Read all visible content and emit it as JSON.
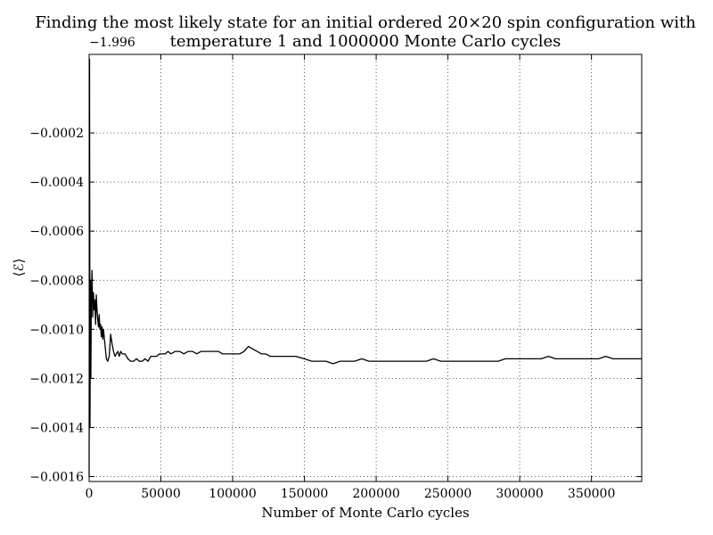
{
  "chart_data": {
    "type": "line",
    "title_line1": "Finding the most likely state for an initial ordered 20×20 spin configuration with",
    "title_line2": "temperature 1 and 1000000 Monte Carlo cycles",
    "xlabel": "Number of Monte Carlo cycles",
    "ylabel": "⟨ℰ⟩",
    "y_offset_label": "−1.996",
    "xlim": [
      0,
      385000
    ],
    "ylim": [
      -0.00162,
      0.00012
    ],
    "xticks": [
      0,
      50000,
      100000,
      150000,
      200000,
      250000,
      300000,
      350000
    ],
    "xtick_labels": [
      "0",
      "50000",
      "100000",
      "150000",
      "200000",
      "250000",
      "300000",
      "350000"
    ],
    "yticks": [
      -0.0002,
      -0.0004,
      -0.0006,
      -0.0008,
      -0.001,
      -0.0012,
      -0.0014,
      -0.0016
    ],
    "ytick_labels": [
      "−0.0002",
      "−0.0004",
      "−0.0006",
      "−0.0008",
      "−0.0010",
      "−0.0012",
      "−0.0014",
      "−0.0016"
    ],
    "grid": true,
    "series": [
      {
        "color": "#000000",
        "x": [
          0,
          300,
          600,
          900,
          1200,
          1500,
          2000,
          2500,
          3000,
          3500,
          4000,
          4500,
          5000,
          5500,
          6000,
          6500,
          7000,
          7500,
          8000,
          8500,
          9000,
          9500,
          10000,
          11000,
          12000,
          13000,
          14000,
          15000,
          16000,
          17000,
          18000,
          19000,
          20000,
          21000,
          22000,
          23000,
          24000,
          25000,
          27000,
          29000,
          31000,
          33000,
          35000,
          37000,
          39000,
          41000,
          43000,
          45000,
          47000,
          49000,
          51000,
          53000,
          55000,
          57000,
          60000,
          63000,
          66000,
          69000,
          72000,
          75000,
          78000,
          81000,
          84000,
          87000,
          90000,
          93000,
          96000,
          99000,
          102000,
          105000,
          108000,
          111000,
          114000,
          117000,
          120000,
          123000,
          126000,
          129000,
          132000,
          135000,
          138000,
          141000,
          144000,
          150000,
          155000,
          160000,
          165000,
          170000,
          175000,
          180000,
          185000,
          190000,
          195000,
          200000,
          205000,
          210000,
          215000,
          220000,
          225000,
          230000,
          235000,
          240000,
          245000,
          250000,
          255000,
          260000,
          265000,
          270000,
          275000,
          280000,
          285000,
          290000,
          295000,
          300000,
          305000,
          310000,
          315000,
          320000,
          325000,
          330000,
          335000,
          340000,
          345000,
          350000,
          355000,
          360000,
          365000,
          370000,
          375000,
          380000,
          385000
        ],
        "y": [
          -0.0016,
          0.0001,
          -0.0014,
          -0.0008,
          -0.0012,
          -0.0009,
          -0.00076,
          -0.00095,
          -0.00085,
          -0.00092,
          -0.00088,
          -0.00098,
          -0.00086,
          -0.00092,
          -0.00096,
          -0.00099,
          -0.00094,
          -0.001,
          -0.00098,
          -0.00103,
          -0.00099,
          -0.00104,
          -0.001,
          -0.00106,
          -0.00112,
          -0.00113,
          -0.00111,
          -0.00102,
          -0.00106,
          -0.00109,
          -0.00111,
          -0.0011,
          -0.00109,
          -0.00111,
          -0.00109,
          -0.0011,
          -0.0011,
          -0.0011,
          -0.00112,
          -0.00113,
          -0.00113,
          -0.00112,
          -0.00113,
          -0.00113,
          -0.00112,
          -0.00113,
          -0.00111,
          -0.00111,
          -0.00111,
          -0.0011,
          -0.0011,
          -0.0011,
          -0.00109,
          -0.0011,
          -0.00109,
          -0.00109,
          -0.0011,
          -0.00109,
          -0.00109,
          -0.0011,
          -0.00109,
          -0.00109,
          -0.00109,
          -0.00109,
          -0.00109,
          -0.0011,
          -0.0011,
          -0.0011,
          -0.0011,
          -0.0011,
          -0.00109,
          -0.00107,
          -0.00108,
          -0.00109,
          -0.0011,
          -0.0011,
          -0.00111,
          -0.00111,
          -0.00111,
          -0.00111,
          -0.00111,
          -0.00111,
          -0.00111,
          -0.00112,
          -0.00113,
          -0.00113,
          -0.00113,
          -0.00114,
          -0.00113,
          -0.00113,
          -0.00113,
          -0.00112,
          -0.00113,
          -0.00113,
          -0.00113,
          -0.00113,
          -0.00113,
          -0.00113,
          -0.00113,
          -0.00113,
          -0.00113,
          -0.00112,
          -0.00113,
          -0.00113,
          -0.00113,
          -0.00113,
          -0.00113,
          -0.00113,
          -0.00113,
          -0.00113,
          -0.00113,
          -0.00112,
          -0.00112,
          -0.00112,
          -0.00112,
          -0.00112,
          -0.00112,
          -0.00111,
          -0.00112,
          -0.00112,
          -0.00112,
          -0.00112,
          -0.00112,
          -0.00112,
          -0.00112,
          -0.00111,
          -0.00112,
          -0.00112,
          -0.00112,
          -0.00112,
          -0.00112
        ]
      }
    ]
  }
}
